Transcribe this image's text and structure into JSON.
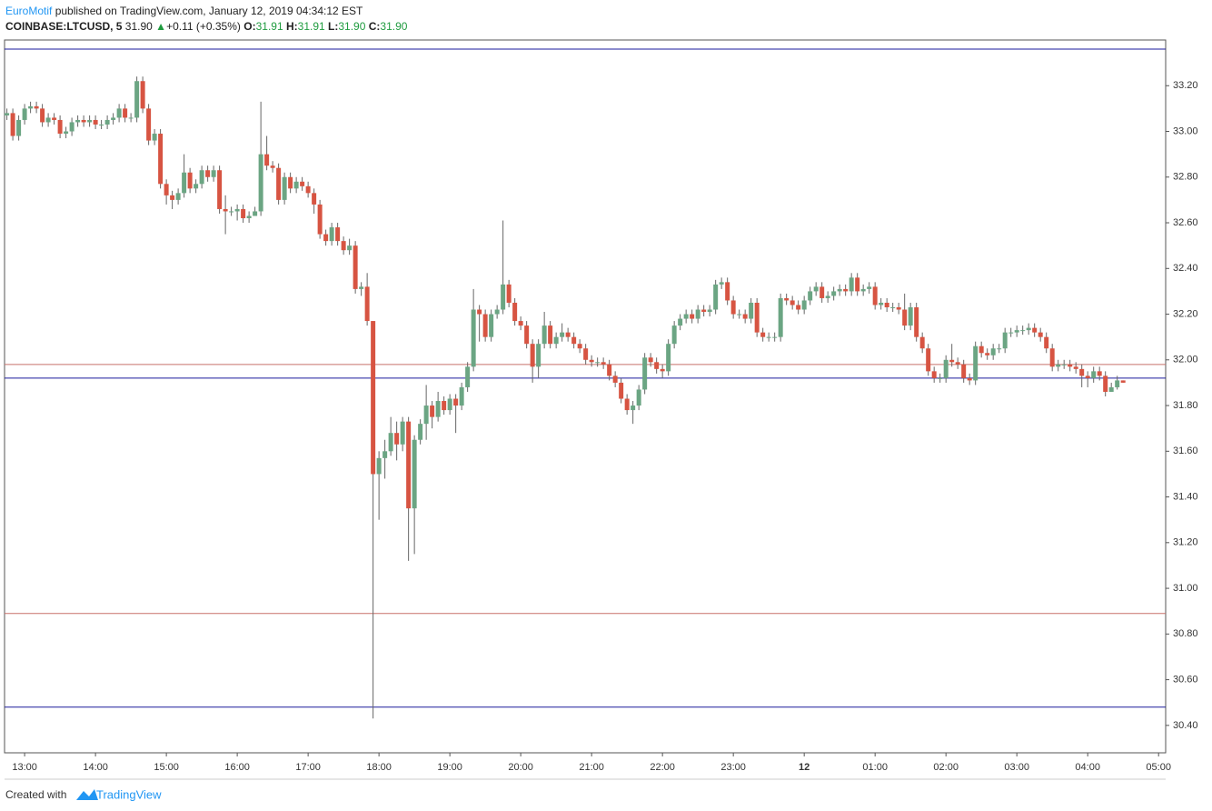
{
  "header": {
    "author": "EuroMotif",
    "published": "published on TradingView.com, January 12, 2019 04:34:12 EST",
    "symbol": "COINBASE:LTCUSD, 5",
    "price": "31.90",
    "arrow": "▲",
    "change": "+0.11 (+0.35%)",
    "ohlc": [
      {
        "label": "O:",
        "value": "31.91"
      },
      {
        "label": "H:",
        "value": "31.91"
      },
      {
        "label": "L:",
        "value": "31.90"
      },
      {
        "label": "C:",
        "value": "31.90"
      }
    ]
  },
  "footer": {
    "created": "Created with",
    "brand": "TradingView"
  },
  "chart_data": {
    "type": "candlestick",
    "up_color": "#6ba583",
    "down_color": "#d75442",
    "ylim": [
      30.28,
      33.4
    ],
    "yticks": [
      {
        "value": 30.4,
        "label": "30.40"
      },
      {
        "value": 30.6,
        "label": "30.60"
      },
      {
        "value": 30.8,
        "label": "30.80"
      },
      {
        "value": 31,
        "label": "31.00"
      },
      {
        "value": 31.2,
        "label": "31.20"
      },
      {
        "value": 31.4,
        "label": "31.40"
      },
      {
        "value": 31.6,
        "label": "31.60"
      },
      {
        "value": 31.8,
        "label": "31.80"
      },
      {
        "value": 32,
        "label": "32.00"
      },
      {
        "value": 32.2,
        "label": "32.20"
      },
      {
        "value": 32.4,
        "label": "32.40"
      },
      {
        "value": 32.6,
        "label": "32.60"
      },
      {
        "value": 32.8,
        "label": "32.80"
      },
      {
        "value": 33,
        "label": "33.00"
      },
      {
        "value": 33.2,
        "label": "33.20"
      }
    ],
    "xlim": [
      "12:43",
      "05:06"
    ],
    "xticks": [
      "13:00",
      "14:00",
      "15:00",
      "16:00",
      "17:00",
      "18:00",
      "19:00",
      "20:00",
      "21:00",
      "22:00",
      "23:00",
      {
        "value": "00:00",
        "label": "12"
      },
      "01:00",
      "02:00",
      "03:00",
      "04:00",
      "05:00"
    ],
    "lines": [
      {
        "value": 33.36,
        "color": "#1a1a9c"
      },
      {
        "value": 31.98,
        "color": "#c8706a"
      },
      {
        "value": 31.92,
        "color": "#1a1a9c"
      },
      {
        "value": 30.89,
        "color": "#c8706a"
      },
      {
        "value": 30.48,
        "color": "#1a1a9c"
      }
    ],
    "x": [
      "12:45",
      "12:50",
      "12:55",
      "13:00",
      "13:05",
      "13:10",
      "13:15",
      "13:20",
      "13:25",
      "13:30",
      "13:35",
      "13:40",
      "13:45",
      "13:50",
      "13:55",
      "14:00",
      "14:05",
      "14:10",
      "14:15",
      "14:20",
      "14:25",
      "14:30",
      "14:35",
      "14:40",
      "14:45",
      "14:50",
      "14:55",
      "15:00",
      "15:05",
      "15:10",
      "15:15",
      "15:20",
      "15:25",
      "15:30",
      "15:35",
      "15:40",
      "15:45",
      "15:50",
      "15:55",
      "16:00",
      "16:05",
      "16:10",
      "16:15",
      "16:20",
      "16:25",
      "16:30",
      "16:35",
      "16:40",
      "16:45",
      "16:50",
      "16:55",
      "17:00",
      "17:05",
      "17:10",
      "17:15",
      "17:20",
      "17:25",
      "17:30",
      "17:35",
      "17:40",
      "17:45",
      "17:50",
      "17:55",
      "18:00",
      "18:05",
      "18:10",
      "18:15",
      "18:20",
      "18:25",
      "18:30",
      "18:35",
      "18:40",
      "18:45",
      "18:50",
      "18:55",
      "19:00",
      "19:05",
      "19:10",
      "19:15",
      "19:20",
      "19:25",
      "19:30",
      "19:35",
      "19:40",
      "19:45",
      "19:50",
      "19:55",
      "20:00",
      "20:05",
      "20:10",
      "20:15",
      "20:20",
      "20:25",
      "20:30",
      "20:35",
      "20:40",
      "20:45",
      "20:50",
      "20:55",
      "21:00",
      "21:05",
      "21:10",
      "21:15",
      "21:20",
      "21:25",
      "21:30",
      "21:35",
      "21:40",
      "21:45",
      "21:50",
      "21:55",
      "22:00",
      "22:05",
      "22:10",
      "22:15",
      "22:20",
      "22:25",
      "22:30",
      "22:35",
      "22:40",
      "22:45",
      "22:50",
      "22:55",
      "23:00",
      "23:05",
      "23:10",
      "23:15",
      "23:20",
      "23:25",
      "23:30",
      "23:35",
      "23:40",
      "23:45",
      "23:50",
      "23:55",
      "00:00",
      "00:05",
      "00:10",
      "00:15",
      "00:20",
      "00:25",
      "00:30",
      "00:35",
      "00:40",
      "00:45",
      "00:50",
      "00:55",
      "01:00",
      "01:05",
      "01:10",
      "01:15",
      "01:20",
      "01:25",
      "01:30",
      "01:35",
      "01:40",
      "01:45",
      "01:50",
      "01:55",
      "02:00",
      "02:05",
      "02:10",
      "02:15",
      "02:20",
      "02:25",
      "02:30",
      "02:35",
      "02:40",
      "02:45",
      "02:50",
      "02:55",
      "03:00",
      "03:05",
      "03:10",
      "03:15",
      "03:20",
      "03:25",
      "03:30",
      "03:35",
      "03:40",
      "03:45",
      "03:50",
      "03:55",
      "04:00",
      "04:05",
      "04:10",
      "04:15",
      "04:20",
      "04:25",
      "04:30"
    ],
    "open": [
      33.07,
      33.08,
      32.98,
      33.05,
      33.1,
      33.11,
      33.1,
      33.04,
      33.06,
      33.05,
      32.99,
      33.0,
      33.04,
      33.05,
      33.04,
      33.05,
      33.03,
      33.03,
      33.05,
      33.06,
      33.1,
      33.06,
      33.06,
      33.22,
      33.1,
      32.96,
      32.99,
      32.77,
      32.72,
      32.7,
      32.73,
      32.82,
      32.75,
      32.77,
      32.83,
      32.8,
      32.83,
      32.66,
      32.65,
      32.65,
      32.66,
      32.62,
      32.63,
      32.65,
      32.9,
      32.85,
      32.84,
      32.7,
      32.8,
      32.75,
      32.78,
      32.76,
      32.73,
      32.68,
      32.55,
      32.52,
      32.58,
      32.52,
      32.48,
      32.5,
      32.31,
      32.32,
      32.17,
      31.5,
      31.57,
      31.6,
      31.68,
      31.63,
      31.73,
      31.35,
      31.65,
      31.72,
      31.8,
      31.75,
      31.82,
      31.78,
      31.83,
      31.8,
      31.88,
      31.97,
      32.22,
      32.2,
      32.1,
      32.2,
      32.22,
      32.33,
      32.25,
      32.17,
      32.15,
      32.07,
      31.97,
      32.07,
      32.15,
      32.07,
      32.1,
      32.12,
      32.1,
      32.07,
      32.05,
      32.0,
      31.99,
      31.99,
      31.98,
      31.93,
      31.9,
      31.83,
      31.78,
      31.8,
      31.87,
      32.01,
      31.99,
      31.96,
      31.95,
      32.07,
      32.15,
      32.18,
      32.2,
      32.18,
      32.22,
      32.21,
      32.22,
      32.33,
      32.34,
      32.26,
      32.2,
      32.2,
      32.18,
      32.25,
      32.12,
      32.1,
      32.1,
      32.1,
      32.27,
      32.26,
      32.24,
      32.22,
      32.26,
      32.3,
      32.32,
      32.27,
      32.28,
      32.3,
      32.31,
      32.3,
      32.36,
      32.3,
      32.31,
      32.32,
      32.24,
      32.25,
      32.23,
      32.23,
      32.22,
      32.15,
      32.23,
      32.1,
      32.05,
      31.95,
      31.92,
      31.92,
      32.0,
      31.99,
      31.98,
      31.92,
      31.91,
      32.06,
      32.03,
      32.02,
      32.05,
      32.05,
      32.12,
      32.12,
      32.13,
      32.13,
      32.14,
      32.12,
      32.1,
      32.05,
      31.97,
      31.98,
      31.98,
      31.97,
      31.96,
      31.93,
      31.92,
      31.95,
      31.93,
      31.86,
      31.88,
      31.91
    ],
    "high": [
      33.1,
      33.1,
      33.07,
      33.12,
      33.13,
      33.13,
      33.12,
      33.08,
      33.08,
      33.07,
      33.02,
      33.06,
      33.07,
      33.07,
      33.07,
      33.07,
      33.05,
      33.07,
      33.08,
      33.12,
      33.12,
      33.08,
      33.24,
      33.24,
      33.12,
      33.01,
      33.01,
      32.79,
      32.74,
      32.75,
      32.9,
      32.84,
      32.79,
      32.85,
      32.85,
      32.85,
      32.85,
      32.72,
      32.67,
      32.68,
      32.68,
      32.65,
      32.67,
      33.13,
      32.98,
      32.87,
      32.86,
      32.82,
      32.82,
      32.8,
      32.8,
      32.78,
      32.75,
      32.7,
      32.57,
      32.6,
      32.6,
      32.54,
      32.53,
      32.52,
      32.34,
      32.38,
      32.17,
      31.6,
      31.65,
      31.75,
      31.73,
      31.75,
      31.75,
      31.67,
      31.74,
      31.89,
      31.82,
      31.86,
      31.84,
      31.85,
      31.85,
      31.9,
      31.99,
      32.31,
      32.24,
      32.22,
      32.22,
      32.24,
      32.61,
      32.35,
      32.27,
      32.19,
      32.17,
      32.09,
      32.09,
      32.21,
      32.17,
      32.12,
      32.16,
      32.14,
      32.12,
      32.09,
      32.07,
      32.02,
      32.01,
      32.01,
      32.0,
      31.95,
      31.92,
      31.85,
      31.82,
      31.89,
      32.03,
      32.03,
      32.01,
      31.98,
      32.09,
      32.17,
      32.2,
      32.22,
      32.22,
      32.24,
      32.24,
      32.24,
      32.35,
      32.36,
      32.36,
      32.28,
      32.22,
      32.22,
      32.27,
      32.27,
      32.14,
      32.12,
      32.12,
      32.29,
      32.29,
      32.28,
      32.26,
      32.28,
      32.32,
      32.34,
      32.34,
      32.3,
      32.32,
      32.33,
      32.33,
      32.38,
      32.38,
      32.33,
      32.34,
      32.34,
      32.27,
      32.27,
      32.25,
      32.25,
      32.29,
      32.25,
      32.25,
      32.12,
      32.07,
      31.97,
      31.94,
      32.02,
      32.07,
      32.01,
      32.0,
      31.94,
      32.08,
      32.08,
      32.05,
      32.07,
      32.07,
      32.14,
      32.14,
      32.15,
      32.15,
      32.16,
      32.16,
      32.14,
      32.12,
      32.07,
      32.0,
      32.0,
      32.0,
      31.99,
      31.98,
      31.95,
      31.97,
      31.97,
      31.95,
      31.9,
      31.93,
      31.91
    ],
    "low": [
      33.05,
      32.96,
      32.96,
      33.03,
      33.08,
      33.08,
      33.02,
      33.02,
      33.03,
      32.97,
      32.97,
      32.98,
      33.02,
      33.02,
      33.02,
      33.01,
      33.01,
      33.01,
      33.03,
      33.04,
      33.04,
      33.04,
      33.04,
      33.08,
      32.94,
      32.94,
      32.75,
      32.68,
      32.66,
      32.68,
      32.71,
      32.73,
      32.73,
      32.75,
      32.78,
      32.78,
      32.64,
      32.55,
      32.63,
      32.61,
      32.6,
      32.6,
      32.63,
      32.63,
      32.83,
      32.82,
      32.68,
      32.68,
      32.73,
      32.73,
      32.74,
      32.71,
      32.64,
      32.53,
      32.5,
      32.5,
      32.5,
      32.46,
      32.46,
      32.29,
      32.28,
      32.15,
      30.43,
      31.3,
      31.48,
      31.58,
      31.56,
      31.6,
      31.12,
      31.15,
      31.63,
      31.65,
      31.7,
      31.73,
      31.76,
      31.76,
      31.68,
      31.78,
      31.86,
      31.95,
      32.08,
      32.08,
      32.08,
      32.18,
      32.2,
      32.23,
      32.15,
      32.13,
      32.05,
      31.9,
      31.92,
      32.05,
      32.05,
      32.05,
      32.08,
      32.08,
      32.05,
      32.03,
      31.98,
      31.97,
      31.97,
      31.96,
      31.91,
      31.88,
      31.81,
      31.76,
      31.72,
      31.78,
      31.85,
      31.97,
      31.94,
      31.92,
      31.93,
      32.05,
      32.13,
      32.16,
      32.16,
      32.16,
      32.19,
      32.19,
      32.2,
      32.31,
      32.24,
      32.18,
      32.18,
      32.16,
      32.16,
      32.1,
      32.08,
      32.08,
      32.08,
      32.08,
      32.24,
      32.22,
      32.2,
      32.2,
      32.24,
      32.28,
      32.25,
      32.25,
      32.26,
      32.28,
      32.28,
      32.28,
      32.28,
      32.28,
      32.29,
      32.22,
      32.22,
      32.21,
      32.21,
      32.2,
      32.13,
      32.13,
      32.08,
      32.03,
      31.93,
      31.9,
      31.9,
      31.9,
      31.97,
      31.96,
      31.9,
      31.89,
      31.89,
      32.01,
      32.0,
      32.0,
      32.03,
      32.03,
      32.1,
      32.1,
      32.11,
      32.11,
      32.1,
      32.08,
      32.03,
      31.95,
      31.95,
      31.96,
      31.95,
      31.94,
      31.88,
      31.88,
      31.9,
      31.91,
      31.84,
      31.86,
      31.87,
      31.9
    ],
    "close": [
      33.08,
      32.98,
      33.05,
      33.1,
      33.11,
      33.1,
      33.04,
      33.06,
      33.05,
      32.99,
      33.0,
      33.04,
      33.05,
      33.04,
      33.05,
      33.03,
      33.03,
      33.05,
      33.06,
      33.1,
      33.06,
      33.06,
      33.22,
      33.1,
      32.96,
      32.99,
      32.77,
      32.72,
      32.7,
      32.73,
      32.82,
      32.75,
      32.77,
      32.83,
      32.8,
      32.83,
      32.66,
      32.65,
      32.65,
      32.66,
      32.62,
      32.63,
      32.65,
      32.9,
      32.85,
      32.84,
      32.7,
      32.8,
      32.75,
      32.78,
      32.76,
      32.73,
      32.68,
      32.55,
      32.52,
      32.58,
      32.52,
      32.48,
      32.5,
      32.31,
      32.32,
      32.17,
      31.5,
      31.57,
      31.6,
      31.68,
      31.63,
      31.73,
      31.35,
      31.65,
      31.72,
      31.8,
      31.75,
      31.82,
      31.78,
      31.83,
      31.8,
      31.88,
      31.97,
      32.22,
      32.2,
      32.1,
      32.2,
      32.22,
      32.33,
      32.25,
      32.17,
      32.15,
      32.07,
      31.97,
      32.07,
      32.15,
      32.07,
      32.1,
      32.12,
      32.1,
      32.07,
      32.05,
      32.0,
      31.99,
      31.99,
      31.98,
      31.93,
      31.9,
      31.83,
      31.78,
      31.8,
      31.87,
      32.01,
      31.99,
      31.96,
      31.95,
      32.07,
      32.15,
      32.18,
      32.2,
      32.18,
      32.22,
      32.21,
      32.22,
      32.33,
      32.34,
      32.26,
      32.2,
      32.2,
      32.18,
      32.25,
      32.12,
      32.1,
      32.1,
      32.1,
      32.27,
      32.26,
      32.24,
      32.22,
      32.26,
      32.3,
      32.32,
      32.27,
      32.28,
      32.3,
      32.31,
      32.3,
      32.36,
      32.3,
      32.31,
      32.32,
      32.24,
      32.25,
      32.23,
      32.23,
      32.22,
      32.15,
      32.23,
      32.1,
      32.05,
      31.95,
      31.92,
      31.92,
      32.0,
      31.99,
      31.98,
      31.92,
      31.91,
      32.06,
      32.03,
      32.02,
      32.05,
      32.05,
      32.12,
      32.12,
      32.13,
      32.13,
      32.14,
      32.12,
      32.1,
      32.05,
      31.97,
      31.98,
      31.98,
      31.97,
      31.96,
      31.93,
      31.92,
      31.95,
      31.93,
      31.86,
      31.88,
      31.91,
      31.9
    ]
  }
}
